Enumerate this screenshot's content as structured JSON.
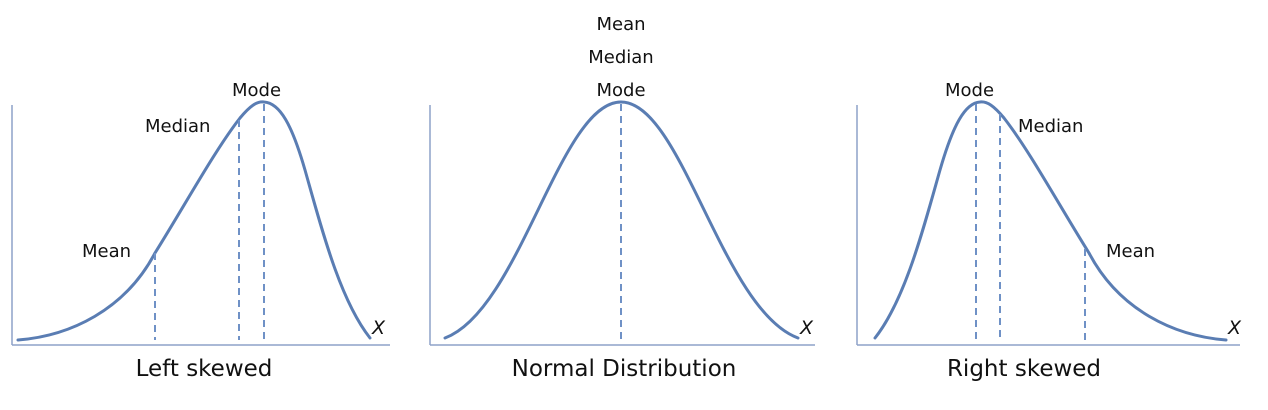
{
  "panels": [
    {
      "id": "left",
      "caption": "Left skewed",
      "x_label": "X",
      "labels": {
        "mean": "Mean",
        "median": "Median",
        "mode": "Mode"
      }
    },
    {
      "id": "normal",
      "caption": "Normal Distribution",
      "x_label": "X",
      "labels": {
        "mean": "Mean",
        "median": "Median",
        "mode": "Mode"
      }
    },
    {
      "id": "right",
      "caption": "Right skewed",
      "x_label": "X",
      "labels": {
        "mode": "Mode",
        "median": "Median",
        "mean": "Mean"
      }
    }
  ],
  "colors": {
    "curve": "#5a7db3",
    "dash": "#6f91c6",
    "axis": "#8ea2c9",
    "text": "#111111"
  }
}
